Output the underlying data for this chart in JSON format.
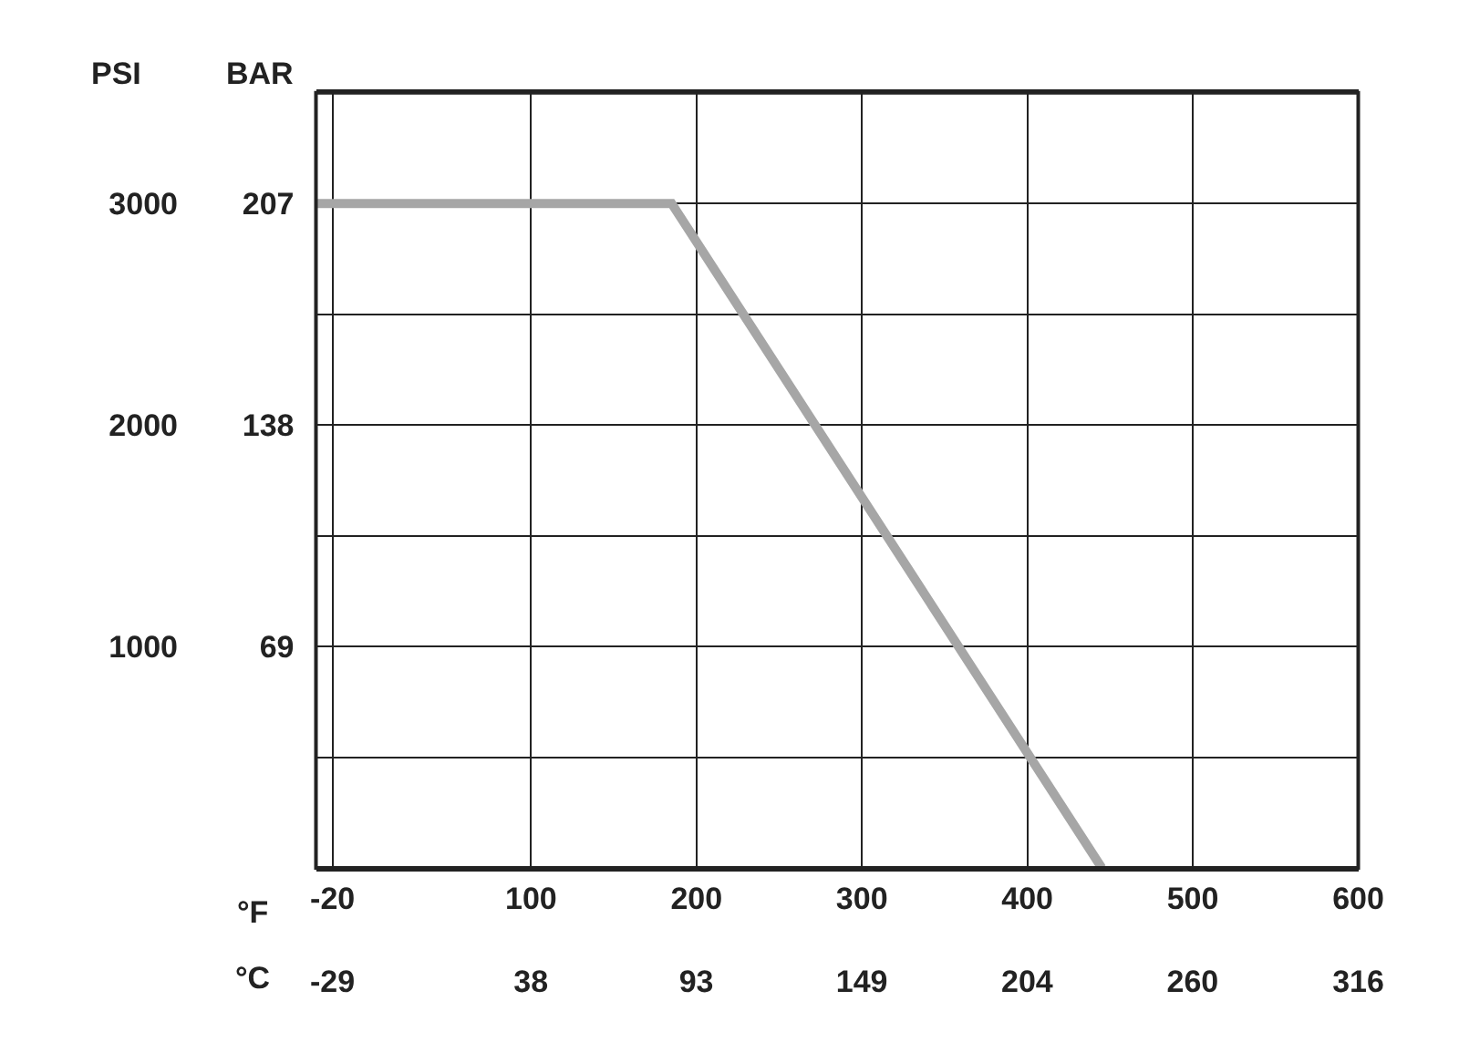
{
  "chart_data": {
    "type": "line",
    "xlabel": "°F",
    "x2label": "°C",
    "ylabel": "PSI",
    "y2label": "BAR",
    "x": [
      -30,
      185,
      445
    ],
    "series": [
      {
        "color": "#a6a6a6",
        "values": [
          3000,
          3000,
          0
        ]
      }
    ],
    "xlim": [
      -30,
      600
    ],
    "xticks": [
      -20,
      100,
      200,
      300,
      400,
      500,
      600
    ],
    "x2lim": [
      -34.4,
      315.6
    ],
    "x2ticks": [
      {
        "value": -28.9,
        "label": "-29"
      },
      {
        "value": 37.8,
        "label": "38"
      },
      {
        "value": 93.3,
        "label": "93"
      },
      {
        "value": 148.9,
        "label": "149"
      },
      {
        "value": 204.4,
        "label": "204"
      },
      {
        "value": 260,
        "label": "260"
      },
      {
        "value": 315.6,
        "label": "316"
      }
    ],
    "ylim": [
      0,
      3500
    ],
    "yticks": [
      {
        "value": 500,
        "label": null
      },
      1000,
      {
        "value": 1500,
        "label": null
      },
      2000,
      {
        "value": 2500,
        "label": null
      },
      3000
    ],
    "y2lim": [
      0,
      241.3
    ],
    "y2ticks": [
      69,
      138,
      207
    ],
    "grid": true,
    "marker": "none",
    "line_style": "solid"
  }
}
